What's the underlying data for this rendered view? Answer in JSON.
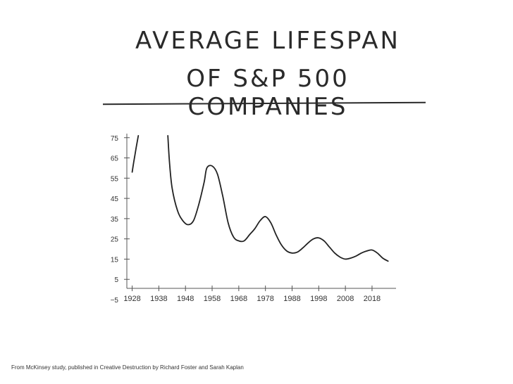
{
  "title_line1": "AVERAGE LIFESPAN",
  "title_line2": "OF S&P 500 COMPANIES",
  "footnote": "From McKinsey study, published in Creative Destruction by Richard Foster and Sarah Kaplan",
  "chart_data": {
    "type": "line",
    "title": "AVERAGE LIFESPAN OF S&P 500 COMPANIES",
    "xlabel": "",
    "ylabel": "",
    "xlim": [
      1926,
      2027
    ],
    "ylim": [
      -5,
      77
    ],
    "x_ticks": [
      1928,
      1938,
      1948,
      1958,
      1968,
      1978,
      1988,
      1998,
      2008,
      2018
    ],
    "y_ticks": [
      75,
      65,
      55,
      45,
      35,
      25,
      15,
      5,
      -5
    ],
    "grid": false,
    "series": [
      {
        "name": "",
        "segments": [
          {
            "x": [
              1928,
              1928.6,
              1929.5,
              1930.3
            ],
            "y": [
              58,
              63,
              70,
              76
            ]
          },
          {
            "x": [
              1941.4,
              1942,
              1943,
              1945,
              1947,
              1949,
              1951,
              1953,
              1955,
              1956,
              1958,
              1960,
              1962,
              1964,
              1966,
              1968,
              1970,
              1972,
              1974,
              1976,
              1978,
              1980,
              1982,
              1984,
              1986,
              1988,
              1990,
              1992,
              1994,
              1996,
              1998,
              2000,
              2002,
              2004,
              2006,
              2008,
              2010,
              2012,
              2014,
              2016,
              2018,
              2020,
              2022,
              2024
            ],
            "y": [
              76,
              63,
              50,
              39,
              34,
              32,
              34,
              42,
              53,
              60,
              61,
              57,
              46,
              33,
              26,
              24,
              24,
              27,
              30,
              34,
              36,
              33,
              27,
              22,
              19,
              18,
              18.5,
              20.5,
              23,
              25,
              25.5,
              24,
              21,
              18,
              16,
              15,
              15.5,
              16.5,
              18,
              19,
              19.5,
              18,
              15.5,
              14
            ]
          }
        ]
      }
    ]
  }
}
